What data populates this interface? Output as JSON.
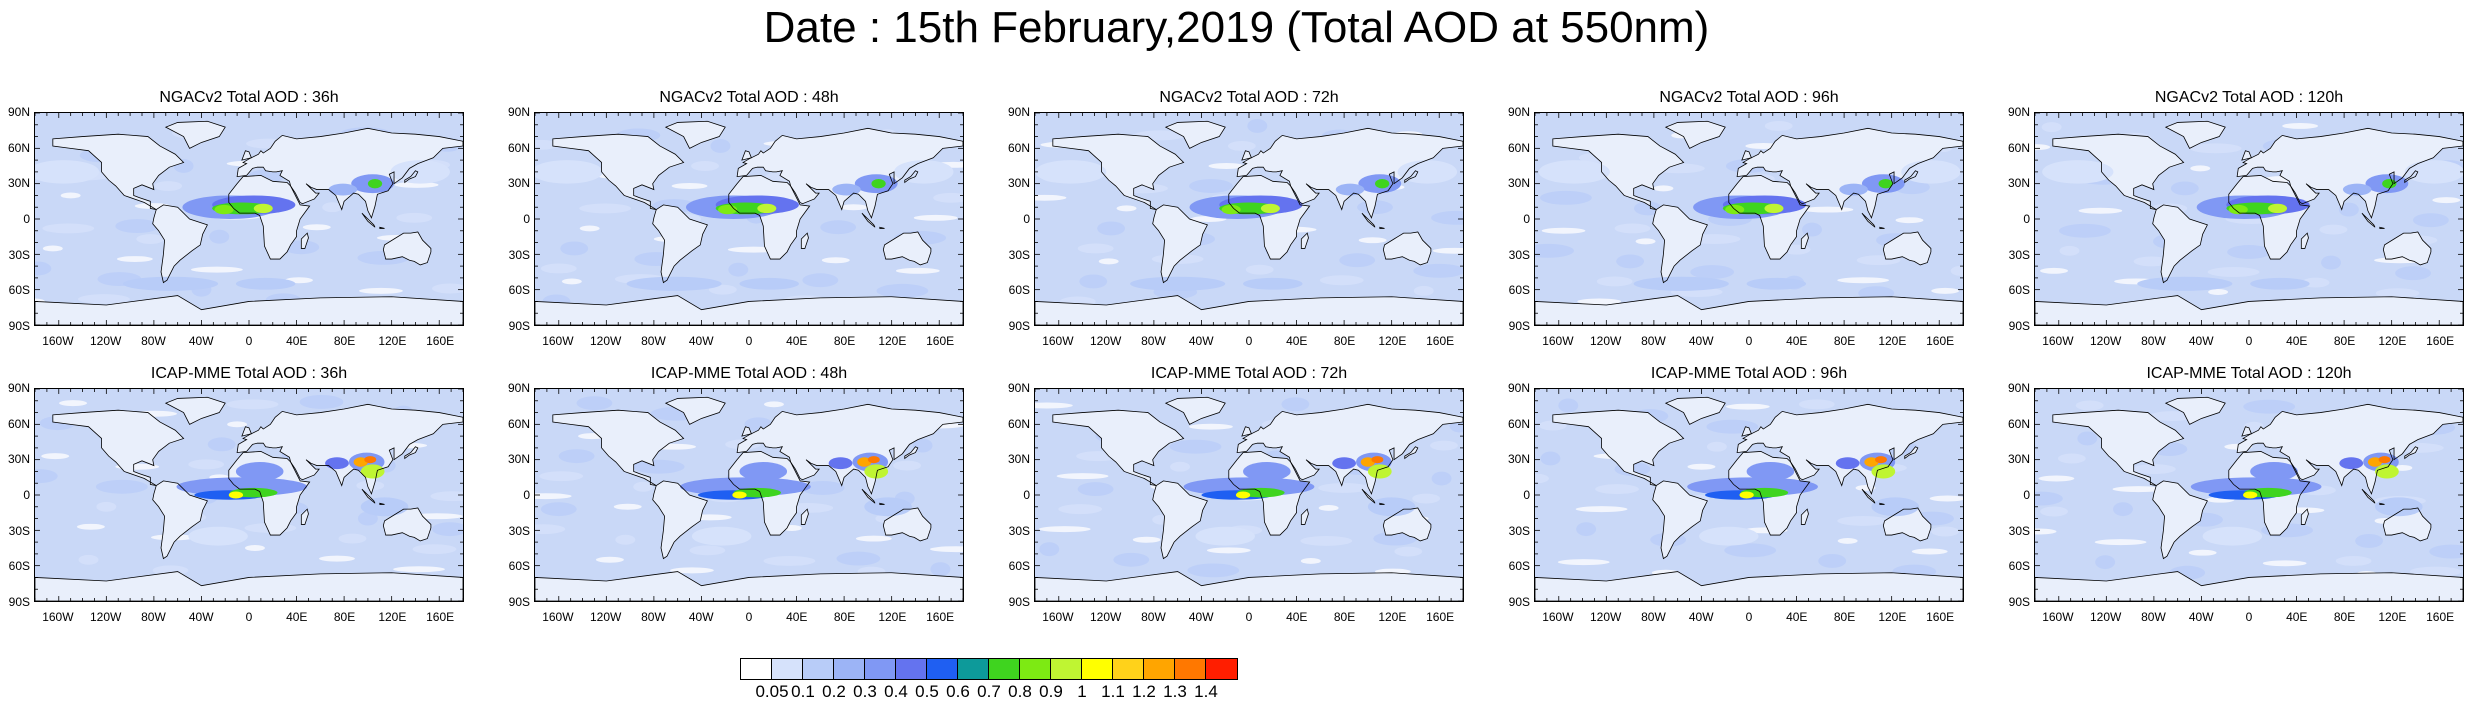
{
  "title": "Date : 15th February,2019 (Total AOD at 550nm)",
  "lat_labels": [
    "90N",
    "60N",
    "30N",
    "0",
    "30S",
    "60S",
    "90S"
  ],
  "lon_labels": [
    "160W",
    "120W",
    "80W",
    "40W",
    "0",
    "40E",
    "80E",
    "120E",
    "160E"
  ],
  "panels": [
    {
      "title": "NGACv2 Total AOD : 36h",
      "row": 0,
      "col": 0
    },
    {
      "title": "NGACv2 Total AOD : 48h",
      "row": 0,
      "col": 1
    },
    {
      "title": "NGACv2 Total AOD : 72h",
      "row": 0,
      "col": 2
    },
    {
      "title": "NGACv2 Total AOD : 96h",
      "row": 0,
      "col": 3
    },
    {
      "title": "NGACv2 Total AOD : 120h",
      "row": 0,
      "col": 4
    },
    {
      "title": "ICAP-MME Total AOD : 36h",
      "row": 1,
      "col": 0
    },
    {
      "title": "ICAP-MME Total AOD : 48h",
      "row": 1,
      "col": 1
    },
    {
      "title": "ICAP-MME Total AOD : 72h",
      "row": 1,
      "col": 2
    },
    {
      "title": "ICAP-MME Total AOD : 96h",
      "row": 1,
      "col": 3
    },
    {
      "title": "ICAP-MME Total AOD : 120h",
      "row": 1,
      "col": 4
    }
  ],
  "colorbar": {
    "labels": [
      "0.05",
      "0.1",
      "0.2",
      "0.3",
      "0.4",
      "0.5",
      "0.6",
      "0.7",
      "0.8",
      "0.9",
      "1",
      "1.1",
      "1.2",
      "1.3",
      "1.4"
    ],
    "colors": [
      "#ffffff",
      "#d6e2fb",
      "#b8ccf8",
      "#9cb4f6",
      "#8098f4",
      "#6473ef",
      "#1f5ff2",
      "#0d9a9a",
      "#3fd41f",
      "#7dea13",
      "#bff532",
      "#ffff00",
      "#ffd21a",
      "#ffa500",
      "#ff7800",
      "#ff1e00"
    ]
  },
  "colors": {
    "water": "#c9d8f7",
    "land": "#e9effb",
    "coast": "#000000"
  }
}
